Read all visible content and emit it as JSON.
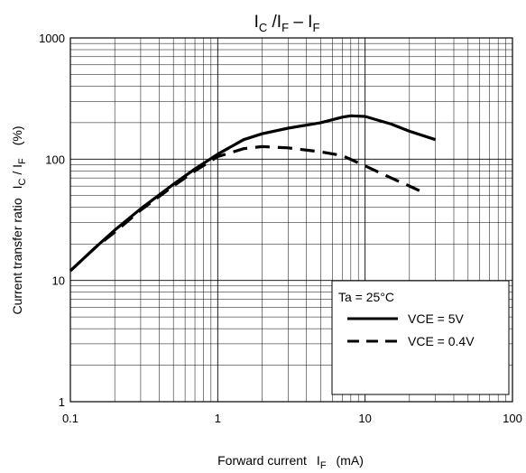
{
  "chart_data": {
    "type": "line",
    "title": "IC /IF – IF",
    "title_parts": {
      "a": "I",
      "a_sub": "C",
      "b": " /I",
      "b_sub": "F",
      "c": " – I",
      "c_sub": "F"
    },
    "xlabel": "Forward current   IF   (mA)",
    "xlabel_parts": {
      "main": "Forward current",
      "sym": "I",
      "sym_sub": "F",
      "unit": "(mA)"
    },
    "ylabel": "Current transfer ratio   IC / IF   (%)",
    "ylabel_parts": {
      "main": "Current transfer ratio",
      "sym1": "I",
      "sym1_sub": "C",
      "slash": " / ",
      "sym2": "I",
      "sym2_sub": "F",
      "unit": "(%)"
    },
    "x_scale": "log",
    "y_scale": "log",
    "xlim": [
      0.1,
      100
    ],
    "ylim": [
      1,
      1000
    ],
    "x_ticks": [
      0.1,
      1,
      10,
      100
    ],
    "x_tick_labels": [
      "0.1",
      "1",
      "10",
      "100"
    ],
    "y_ticks": [
      1,
      10,
      100,
      1000
    ],
    "y_tick_labels": [
      "1",
      "10",
      "100",
      "1000"
    ],
    "grid": true,
    "legend_position": "bottom-right",
    "legend_title": "Ta = 25°C",
    "series": [
      {
        "name": "VCE = 5V",
        "style": "solid",
        "x": [
          0.1,
          0.15,
          0.2,
          0.3,
          0.5,
          0.7,
          1,
          1.5,
          2,
          3,
          5,
          7,
          8,
          10,
          15,
          20,
          30
        ],
        "y": [
          12,
          19,
          26,
          39,
          62,
          83,
          110,
          145,
          162,
          180,
          200,
          222,
          228,
          225,
          195,
          170,
          145
        ]
      },
      {
        "name": "VCE = 0.4V",
        "style": "dashed",
        "x": [
          0.1,
          0.15,
          0.2,
          0.3,
          0.5,
          0.7,
          1,
          1.5,
          2,
          3,
          5,
          7,
          10,
          15,
          20,
          25
        ],
        "y": [
          12,
          19,
          25,
          38,
          60,
          80,
          105,
          122,
          127,
          124,
          115,
          107,
          88,
          70,
          60,
          53
        ]
      }
    ],
    "colors": {
      "line": "#000000",
      "grid": "#000000",
      "frame": "#000000"
    }
  }
}
